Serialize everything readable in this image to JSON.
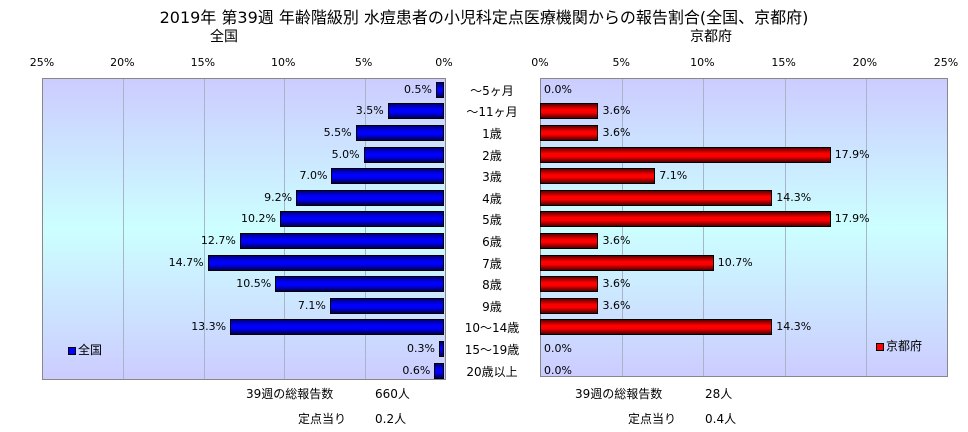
{
  "chart_data": [
    {
      "type": "bar",
      "orientation": "horizontal",
      "title": "全国",
      "series_name": "全国",
      "color": "#0000ff",
      "xlim": [
        0,
        25
      ],
      "ticks": [
        "25%",
        "20%",
        "15%",
        "10%",
        "5%",
        "0%"
      ],
      "categories": [
        "～5ヶ月",
        "～11ヶ月",
        "1歳",
        "2歳",
        "3歳",
        "4歳",
        "5歳",
        "6歳",
        "7歳",
        "8歳",
        "9歳",
        "10～14歳",
        "15～19歳",
        "20歳以上"
      ],
      "values": [
        0.5,
        3.5,
        5.5,
        5.0,
        7.0,
        9.2,
        10.2,
        12.7,
        14.7,
        10.5,
        7.1,
        13.3,
        0.3,
        0.6
      ],
      "labels": [
        "0.5%",
        "3.5%",
        "5.5%",
        "5.0%",
        "7.0%",
        "9.2%",
        "10.2%",
        "12.7%",
        "14.7%",
        "10.5%",
        "7.1%",
        "13.3%",
        "0.3%",
        "0.6%"
      ]
    },
    {
      "type": "bar",
      "orientation": "horizontal",
      "title": "京都府",
      "series_name": "京都府",
      "color": "#ff0000",
      "xlim": [
        0,
        25
      ],
      "ticks": [
        "0%",
        "5%",
        "10%",
        "15%",
        "20%",
        "25%"
      ],
      "categories": [
        "～5ヶ月",
        "～11ヶ月",
        "1歳",
        "2歳",
        "3歳",
        "4歳",
        "5歳",
        "6歳",
        "7歳",
        "8歳",
        "9歳",
        "10～14歳",
        "15～19歳",
        "20歳以上"
      ],
      "values": [
        0.0,
        3.6,
        3.6,
        17.9,
        7.1,
        14.3,
        17.9,
        3.6,
        10.7,
        3.6,
        3.6,
        14.3,
        0.0,
        0.0
      ],
      "labels": [
        "0.0%",
        "3.6%",
        "3.6%",
        "17.9%",
        "7.1%",
        "14.3%",
        "17.9%",
        "3.6%",
        "10.7%",
        "3.6%",
        "3.6%",
        "14.3%",
        "0.0%",
        "0.0%"
      ]
    }
  ],
  "title": "2019年 第39週 年齢階級別 水痘患者の小児科定点医療機関からの報告割合(全国、京都府)",
  "footer": {
    "national": {
      "total_label": "39週の総報告数",
      "total": "660人",
      "per_label": "定点当り",
      "per": "0.2人"
    },
    "kyoto": {
      "total_label": "39週の総報告数",
      "total": "28人",
      "per_label": "定点当り",
      "per": "0.4人"
    }
  }
}
